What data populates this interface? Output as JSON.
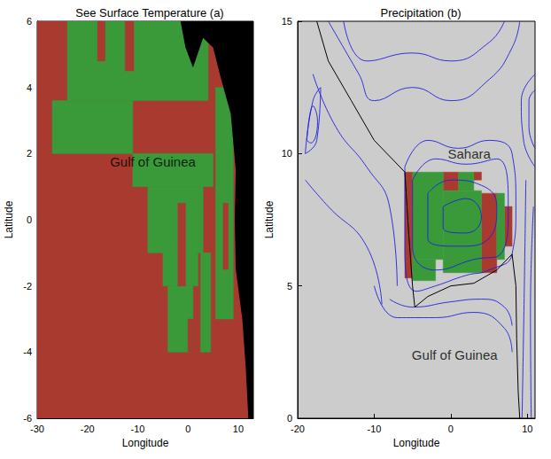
{
  "chart_data": [
    {
      "type": "map",
      "title": "See Surface Temperature (a)",
      "x_label": "Longitude",
      "y_label": "Latitude",
      "xlim": [
        -30,
        13
      ],
      "xticks": [
        -30,
        -20,
        -10,
        0,
        10
      ],
      "ylim": [
        -6,
        6
      ],
      "yticks": [
        -6,
        -4,
        -2,
        0,
        2,
        4,
        6
      ],
      "grid": true,
      "cells": [
        {
          "color": "#a83a30",
          "rects": [
            [
              -30,
              13,
              -6,
              6
            ]
          ]
        },
        {
          "color": "#3a9a3a",
          "rects": [
            [
              -27,
              -11,
              2,
              3.6
            ],
            [
              -24,
              4,
              3.6,
              6
            ],
            [
              -11,
              5,
              1,
              2
            ],
            [
              -8,
              3,
              -1,
              1
            ],
            [
              -5,
              2,
              -2,
              -1
            ],
            [
              -4,
              1,
              -4,
              -2
            ],
            [
              2.5,
              4.5,
              -4,
              -1
            ],
            [
              5.5,
              9,
              -3,
              4
            ]
          ]
        },
        {
          "color": "#a83a30",
          "rects": [
            [
              -18,
              -16.5,
              4.8,
              6
            ],
            [
              -12.5,
              -10.8,
              4.5,
              6
            ],
            [
              -2,
              -0.5,
              -2,
              0.5
            ],
            [
              0,
              1,
              -4,
              -3
            ],
            [
              7,
              8,
              -1.5,
              0.5
            ]
          ]
        }
      ],
      "land": {
        "color": "#000000",
        "outline": [
          [
            -1.5,
            6
          ],
          [
            -0.5,
            5.2
          ],
          [
            1,
            4.6
          ],
          [
            3,
            5.5
          ],
          [
            5,
            5.2
          ],
          [
            6.5,
            4.3
          ],
          [
            8.5,
            3.2
          ],
          [
            9.5,
            1.5
          ],
          [
            9.3,
            0
          ],
          [
            9.5,
            -1.5
          ],
          [
            10.8,
            -3
          ],
          [
            11.5,
            -4.5
          ],
          [
            12,
            -6
          ],
          [
            13,
            -6
          ],
          [
            13,
            6
          ]
        ]
      },
      "annotations": [
        {
          "text": "Gulf of Guinea",
          "x": -7,
          "y": 1.75
        }
      ]
    },
    {
      "type": "map",
      "title": "Precipitation (b)",
      "x_label": "Longitude",
      "y_label": "Latitude",
      "xlim": [
        -20,
        11
      ],
      "xticks": [
        -20,
        -10,
        0,
        10
      ],
      "ylim": [
        0,
        15
      ],
      "yticks": [
        0,
        5,
        10,
        15
      ],
      "grid": false,
      "background": "#cccccc",
      "cells": [
        {
          "color": "#a83a30",
          "rects": [
            [
              -6,
              -5,
              5.3,
              9.3
            ],
            [
              -1,
              1,
              8.6,
              9.3
            ],
            [
              0,
              2,
              6.5,
              7.5
            ],
            [
              4,
              6,
              5.5,
              8.5
            ],
            [
              7,
              8,
              6.5,
              8
            ],
            [
              3,
              4,
              9,
              9.3
            ]
          ]
        },
        {
          "color": "#3a9a3a",
          "rects": [
            [
              -5,
              -1,
              6,
              9.3
            ],
            [
              -1,
              4,
              5.5,
              8.6
            ],
            [
              1,
              3,
              8.6,
              9.3
            ],
            [
              6,
              7,
              6,
              8.5
            ],
            [
              -5,
              -2,
              5.2,
              6
            ]
          ]
        }
      ],
      "contours": {
        "color": "#2020e0",
        "lines": [
          [
            [
              -6,
              9.5
            ],
            [
              -3,
              10.5
            ],
            [
              1,
              10.2
            ],
            [
              5,
              10.5
            ],
            [
              8,
              10
            ],
            [
              8.5,
              8
            ],
            [
              8,
              6.2
            ],
            [
              5,
              5.6
            ],
            [
              2,
              5.4
            ],
            [
              -2,
              5
            ],
            [
              -4.5,
              4.8
            ],
            [
              -6,
              6.5
            ],
            [
              -6,
              9.5
            ]
          ],
          [
            [
              -5,
              9
            ],
            [
              -2,
              9.8
            ],
            [
              2,
              9.6
            ],
            [
              6,
              9.8
            ],
            [
              7.5,
              8
            ],
            [
              6.5,
              6.2
            ],
            [
              3,
              6
            ],
            [
              -2,
              5.6
            ],
            [
              -5,
              6.5
            ],
            [
              -5,
              9
            ]
          ],
          [
            [
              -3,
              8.5
            ],
            [
              0,
              9
            ],
            [
              4,
              8.8
            ],
            [
              6,
              8
            ],
            [
              5,
              6.8
            ],
            [
              1,
              6.5
            ],
            [
              -3,
              6.8
            ],
            [
              -3,
              8.5
            ]
          ],
          [
            [
              -1,
              8
            ],
            [
              2,
              8.3
            ],
            [
              4,
              7.6
            ],
            [
              2,
              7
            ],
            [
              -1,
              7.2
            ],
            [
              -1,
              8
            ]
          ],
          [
            [
              -19,
              10
            ],
            [
              -18,
              12
            ],
            [
              -17,
              12.5
            ],
            [
              -17.5,
              10.5
            ],
            [
              -19,
              10
            ]
          ],
          [
            [
              -18.8,
              10.5
            ],
            [
              -18,
              11.8
            ],
            [
              -17.4,
              11.2
            ],
            [
              -18.3,
              10.4
            ],
            [
              -18.8,
              10.5
            ]
          ],
          [
            [
              11,
              9.5
            ],
            [
              9.5,
              10.5
            ],
            [
              9.2,
              12
            ],
            [
              11,
              13
            ]
          ],
          [
            [
              11,
              10.2
            ],
            [
              10.2,
              11
            ],
            [
              10.2,
              12
            ],
            [
              11,
              12.4
            ]
          ],
          [
            [
              -16,
              15
            ],
            [
              -12,
              13
            ],
            [
              -10,
              12
            ],
            [
              -5,
              12.5
            ],
            [
              0,
              12
            ],
            [
              5,
              12.8
            ],
            [
              8,
              14
            ],
            [
              9,
              15
            ]
          ],
          [
            [
              -14,
              15
            ],
            [
              -11,
              13.5
            ],
            [
              -5,
              13.8
            ],
            [
              0,
              13.5
            ],
            [
              5,
              14.2
            ],
            [
              7,
              15
            ]
          ],
          [
            [
              -8,
              4.5
            ],
            [
              -5,
              4.2
            ],
            [
              0,
              4.4
            ],
            [
              4,
              4.5
            ],
            [
              7,
              4.2
            ],
            [
              8,
              3.5
            ]
          ],
          [
            [
              -10,
              5
            ],
            [
              -7,
              3.8
            ],
            [
              -2,
              3.8
            ],
            [
              3,
              4
            ],
            [
              7,
              3.4
            ],
            [
              8,
              2.5
            ]
          ],
          [
            [
              -18,
              13
            ],
            [
              -15,
              11
            ],
            [
              -11,
              9.5
            ],
            [
              -8,
              8
            ],
            [
              -7,
              5
            ]
          ],
          [
            [
              -19,
              9
            ],
            [
              -16,
              8
            ],
            [
              -11,
              6.5
            ],
            [
              -9,
              4.3
            ]
          ],
          [
            [
              9.3,
              0
            ],
            [
              9.6,
              5
            ],
            [
              9.8,
              9
            ]
          ],
          [
            [
              10.5,
              0
            ],
            [
              10.4,
              4
            ],
            [
              10.8,
              8
            ]
          ]
        ]
      },
      "coastline": {
        "color": "#000000",
        "points": [
          [
            -17.5,
            15
          ],
          [
            -16,
            13.5
          ],
          [
            -13,
            12
          ],
          [
            -10,
            10.5
          ],
          [
            -6,
            9.3
          ],
          [
            -5.5,
            7
          ],
          [
            -5,
            5
          ],
          [
            -4.7,
            4.2
          ],
          [
            -3,
            4.6
          ],
          [
            0,
            5
          ],
          [
            3,
            5.1
          ],
          [
            6,
            5.6
          ],
          [
            8,
            6.2
          ],
          [
            8.5,
            5
          ],
          [
            8.6,
            3
          ],
          [
            8.8,
            1
          ],
          [
            9,
            0
          ]
        ]
      },
      "annotations": [
        {
          "text": "Sahara",
          "x": 2.4,
          "y": 10
        },
        {
          "text": "Gulf of Guinea",
          "x": 0.5,
          "y": 2.4
        }
      ]
    }
  ]
}
